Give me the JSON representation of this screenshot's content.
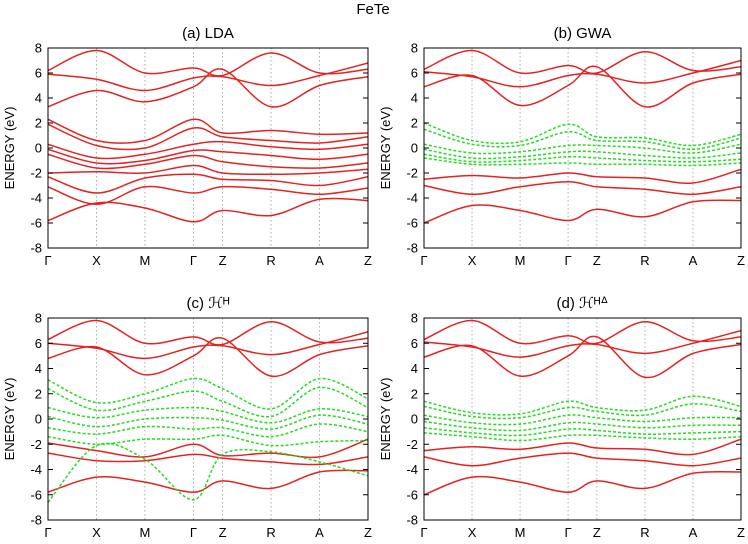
{
  "figure_title": "FeTe",
  "colors": {
    "lda_bands": "#e52222",
    "model_bands": "#22dd22",
    "frame": "#000000",
    "guides": "#999999"
  },
  "chart_data": [
    {
      "type": "line",
      "title": "(a) LDA",
      "ylabel": "ENERGY (eV)",
      "ylim": [
        -8,
        8
      ],
      "yticks": [
        -8,
        -6,
        -4,
        -2,
        0,
        2,
        4,
        6,
        8
      ],
      "x": [
        0,
        1,
        2,
        3,
        3.6,
        4.6,
        5.6,
        6.6
      ],
      "xtick_labels": [
        "Γ",
        "X",
        "M",
        "Γ",
        "Z",
        "R",
        "A",
        "Z"
      ],
      "xlim": [
        0,
        6.6
      ],
      "grid": "vertical dotted lines at high-symmetry points",
      "series": [
        {
          "color": "red",
          "style": "solid",
          "values": [
            6.2,
            7.8,
            6.0,
            6.4,
            5.8,
            7.6,
            6.0,
            6.3
          ]
        },
        {
          "color": "red",
          "style": "solid",
          "values": [
            5.9,
            5.5,
            4.6,
            5.6,
            5.7,
            5.0,
            5.8,
            6.8
          ]
        },
        {
          "color": "red",
          "style": "solid",
          "values": [
            3.3,
            4.6,
            3.7,
            4.9,
            6.3,
            3.3,
            5.0,
            5.7
          ]
        },
        {
          "color": "red",
          "style": "solid",
          "values": [
            2.3,
            0.6,
            0.6,
            2.3,
            1.2,
            1.4,
            1.1,
            1.2
          ]
        },
        {
          "color": "red",
          "style": "solid",
          "values": [
            1.9,
            0.2,
            0.0,
            1.6,
            0.9,
            0.6,
            0.4,
            0.9
          ]
        },
        {
          "color": "red",
          "style": "solid",
          "values": [
            0.3,
            -0.8,
            -0.5,
            0.3,
            0.5,
            0.1,
            -0.1,
            0.3
          ]
        },
        {
          "color": "red",
          "style": "solid",
          "values": [
            -0.1,
            -1.2,
            -1.0,
            -0.2,
            -0.3,
            -0.6,
            -0.9,
            -0.5
          ]
        },
        {
          "color": "red",
          "style": "solid",
          "values": [
            -0.5,
            -1.6,
            -1.3,
            -0.6,
            -1.1,
            -1.5,
            -1.6,
            -1.2
          ]
        },
        {
          "color": "red",
          "style": "solid",
          "values": [
            -2.0,
            -1.9,
            -2.0,
            -1.4,
            -2.0,
            -2.1,
            -2.0,
            -1.7
          ]
        },
        {
          "color": "red",
          "style": "solid",
          "values": [
            -2.3,
            -3.6,
            -2.4,
            -2.1,
            -2.5,
            -2.6,
            -3.0,
            -2.3
          ]
        },
        {
          "color": "red",
          "style": "solid",
          "values": [
            -3.1,
            -4.5,
            -3.1,
            -3.6,
            -3.1,
            -3.3,
            -3.7,
            -3.2
          ]
        },
        {
          "color": "red",
          "style": "solid",
          "values": [
            -5.8,
            -4.4,
            -4.8,
            -5.9,
            -5.0,
            -5.4,
            -4.1,
            -4.2
          ]
        }
      ]
    },
    {
      "type": "line",
      "title": "(b) GWA",
      "ylabel": "ENERGY (eV)",
      "ylim": [
        -8,
        8
      ],
      "yticks": [
        -8,
        -6,
        -4,
        -2,
        0,
        2,
        4,
        6,
        8
      ],
      "x": [
        0,
        1,
        2,
        3,
        3.6,
        4.6,
        5.6,
        6.6
      ],
      "xtick_labels": [
        "Γ",
        "X",
        "M",
        "Γ",
        "Z",
        "R",
        "A",
        "Z"
      ],
      "xlim": [
        0,
        6.6
      ],
      "grid": "vertical dotted lines at high-symmetry points",
      "series": [
        {
          "color": "red",
          "style": "solid",
          "values": [
            6.3,
            7.8,
            6.0,
            6.6,
            6.0,
            7.7,
            6.2,
            6.5
          ]
        },
        {
          "color": "red",
          "style": "solid",
          "values": [
            6.1,
            5.7,
            4.9,
            5.8,
            5.9,
            5.2,
            6.0,
            7.0
          ]
        },
        {
          "color": "red",
          "style": "solid",
          "values": [
            4.9,
            5.8,
            3.4,
            5.0,
            6.5,
            3.3,
            5.2,
            5.9
          ]
        },
        {
          "color": "green",
          "style": "dashed",
          "values": [
            2.0,
            0.6,
            0.5,
            1.9,
            0.9,
            0.8,
            0.2,
            1.1
          ]
        },
        {
          "color": "green",
          "style": "dashed",
          "values": [
            1.5,
            0.3,
            0.2,
            1.3,
            0.6,
            0.5,
            -0.1,
            0.8
          ]
        },
        {
          "color": "green",
          "style": "dashed",
          "values": [
            0.3,
            -0.4,
            -0.3,
            0.2,
            0.2,
            0.0,
            -0.4,
            0.3
          ]
        },
        {
          "color": "green",
          "style": "dashed",
          "values": [
            -0.1,
            -0.8,
            -0.7,
            -0.3,
            -0.3,
            -0.6,
            -0.8,
            -0.4
          ]
        },
        {
          "color": "green",
          "style": "dashed",
          "values": [
            -0.5,
            -1.1,
            -1.0,
            -0.7,
            -0.8,
            -1.0,
            -1.1,
            -0.9
          ]
        },
        {
          "color": "green",
          "style": "dashed",
          "values": [
            -0.8,
            -1.3,
            -1.3,
            -1.2,
            -1.3,
            -1.3,
            -1.4,
            -1.2
          ]
        },
        {
          "color": "red",
          "style": "solid",
          "values": [
            -2.5,
            -2.2,
            -2.4,
            -2.0,
            -2.3,
            -2.4,
            -2.8,
            -1.7
          ]
        },
        {
          "color": "red",
          "style": "solid",
          "values": [
            -3.0,
            -3.7,
            -3.1,
            -2.7,
            -3.1,
            -3.3,
            -3.7,
            -3.1
          ]
        },
        {
          "color": "red",
          "style": "solid",
          "values": [
            -6.0,
            -4.6,
            -5.0,
            -5.8,
            -4.9,
            -5.5,
            -4.3,
            -4.2
          ]
        }
      ]
    },
    {
      "type": "line",
      "title": "(c) ℋᴴ",
      "ylabel": "ENERGY (eV)",
      "ylim": [
        -8,
        8
      ],
      "yticks": [
        -8,
        -6,
        -4,
        -2,
        0,
        2,
        4,
        6,
        8
      ],
      "x": [
        0,
        1,
        2,
        3,
        3.6,
        4.6,
        5.6,
        6.6
      ],
      "xtick_labels": [
        "Γ",
        "X",
        "M",
        "Γ",
        "Z",
        "R",
        "A",
        "Z"
      ],
      "xlim": [
        0,
        6.6
      ],
      "grid": "vertical dotted lines at high-symmetry points",
      "series": [
        {
          "color": "red",
          "style": "solid",
          "values": [
            6.3,
            7.8,
            6.0,
            6.5,
            5.9,
            7.7,
            6.1,
            6.4
          ]
        },
        {
          "color": "red",
          "style": "solid",
          "values": [
            6.0,
            5.6,
            4.8,
            5.7,
            5.8,
            5.1,
            5.9,
            6.9
          ]
        },
        {
          "color": "red",
          "style": "solid",
          "values": [
            4.8,
            5.7,
            3.5,
            5.0,
            6.4,
            3.4,
            5.1,
            5.8
          ]
        },
        {
          "color": "green",
          "style": "dashed",
          "values": [
            3.1,
            1.3,
            2.0,
            3.2,
            2.4,
            0.8,
            3.2,
            1.6
          ]
        },
        {
          "color": "green",
          "style": "dashed",
          "values": [
            2.4,
            0.7,
            1.4,
            2.2,
            1.4,
            0.2,
            2.5,
            0.9
          ]
        },
        {
          "color": "green",
          "style": "dashed",
          "values": [
            0.9,
            0.1,
            0.7,
            0.9,
            0.6,
            -0.3,
            0.8,
            0.2
          ]
        },
        {
          "color": "green",
          "style": "dashed",
          "values": [
            0.2,
            -0.6,
            0.0,
            0.1,
            -0.1,
            -0.8,
            0.3,
            -0.4
          ]
        },
        {
          "color": "green",
          "style": "dashed",
          "values": [
            -0.7,
            -1.2,
            -0.6,
            -0.8,
            -0.7,
            -1.4,
            -0.4,
            -1.0
          ]
        },
        {
          "color": "green",
          "style": "dashed",
          "values": [
            -1.4,
            -2.0,
            -1.6,
            -1.6,
            -1.3,
            -2.1,
            -1.8,
            -1.7
          ]
        },
        {
          "color": "green",
          "style": "dashed",
          "values": [
            -6.6,
            -2.1,
            -3.2,
            -6.4,
            -2.8,
            -2.6,
            -3.4,
            -4.5
          ]
        },
        {
          "color": "red",
          "style": "solid",
          "values": [
            -1.9,
            -2.5,
            -3.0,
            -2.0,
            -2.9,
            -2.7,
            -3.0,
            -1.6
          ]
        },
        {
          "color": "red",
          "style": "solid",
          "values": [
            -2.7,
            -3.3,
            -3.3,
            -2.8,
            -3.1,
            -3.4,
            -3.6,
            -3.0
          ]
        },
        {
          "color": "red",
          "style": "solid",
          "values": [
            -5.8,
            -4.6,
            -5.0,
            -5.8,
            -4.9,
            -5.5,
            -4.2,
            -4.1
          ]
        }
      ]
    },
    {
      "type": "line",
      "title": "(d) ℋᴴᐞ",
      "ylabel": "ENERGY (eV)",
      "ylim": [
        -8,
        8
      ],
      "yticks": [
        -8,
        -6,
        -4,
        -2,
        0,
        2,
        4,
        6,
        8
      ],
      "x": [
        0,
        1,
        2,
        3,
        3.6,
        4.6,
        5.6,
        6.6
      ],
      "xtick_labels": [
        "Γ",
        "X",
        "M",
        "Γ",
        "Z",
        "R",
        "A",
        "Z"
      ],
      "xlim": [
        0,
        6.6
      ],
      "grid": "vertical dotted lines at high-symmetry points",
      "series": [
        {
          "color": "red",
          "style": "solid",
          "values": [
            6.3,
            7.8,
            6.0,
            6.6,
            6.0,
            7.7,
            6.2,
            6.5
          ]
        },
        {
          "color": "red",
          "style": "solid",
          "values": [
            6.1,
            5.7,
            4.9,
            5.8,
            5.9,
            5.2,
            6.0,
            7.0
          ]
        },
        {
          "color": "red",
          "style": "solid",
          "values": [
            4.9,
            5.8,
            3.4,
            5.0,
            6.5,
            3.3,
            5.2,
            5.9
          ]
        },
        {
          "color": "green",
          "style": "dashed",
          "values": [
            1.4,
            0.5,
            0.4,
            1.4,
            0.9,
            0.7,
            1.8,
            1.0
          ]
        },
        {
          "color": "green",
          "style": "dashed",
          "values": [
            1.0,
            0.2,
            0.1,
            0.9,
            0.6,
            0.3,
            1.2,
            0.6
          ]
        },
        {
          "color": "green",
          "style": "dashed",
          "values": [
            0.3,
            -0.3,
            -0.4,
            0.3,
            0.1,
            -0.2,
            0.1,
            0.1
          ]
        },
        {
          "color": "green",
          "style": "dashed",
          "values": [
            -0.2,
            -0.7,
            -0.9,
            -0.3,
            -0.4,
            -0.7,
            -0.5,
            -0.5
          ]
        },
        {
          "color": "green",
          "style": "dashed",
          "values": [
            -0.7,
            -1.1,
            -1.3,
            -0.8,
            -0.9,
            -1.2,
            -1.1,
            -1.0
          ]
        },
        {
          "color": "green",
          "style": "dashed",
          "values": [
            -1.1,
            -1.4,
            -1.7,
            -1.3,
            -1.3,
            -1.5,
            -1.6,
            -1.4
          ]
        },
        {
          "color": "red",
          "style": "solid",
          "values": [
            -2.5,
            -2.2,
            -2.4,
            -1.9,
            -2.3,
            -2.4,
            -2.8,
            -1.6
          ]
        },
        {
          "color": "red",
          "style": "solid",
          "values": [
            -3.0,
            -3.7,
            -3.1,
            -2.7,
            -3.1,
            -3.3,
            -3.7,
            -3.1
          ]
        },
        {
          "color": "red",
          "style": "solid",
          "values": [
            -6.0,
            -4.6,
            -5.0,
            -5.8,
            -4.9,
            -5.5,
            -4.3,
            -4.2
          ]
        }
      ]
    }
  ]
}
